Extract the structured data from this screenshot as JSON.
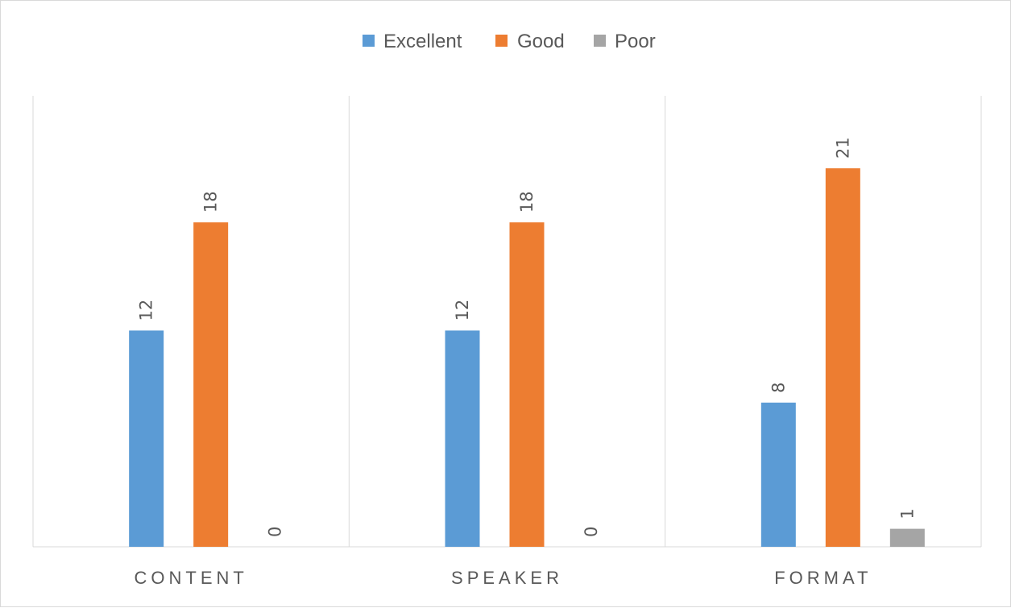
{
  "chart_data": {
    "type": "bar",
    "categories": [
      "CONTENT",
      "SPEAKER",
      "FORMAT"
    ],
    "series": [
      {
        "name": "Excellent",
        "color": "#5b9bd5",
        "values": [
          12,
          12,
          8
        ]
      },
      {
        "name": "Good",
        "color": "#ed7d31",
        "values": [
          18,
          18,
          21
        ]
      },
      {
        "name": "Poor",
        "color": "#a5a5a5",
        "values": [
          0,
          0,
          1
        ]
      }
    ],
    "title": "",
    "xlabel": "",
    "ylabel": "",
    "ylim": [
      0,
      25
    ],
    "legend": "top",
    "grid": "vertical category separators",
    "data_labels": "rotated vertical above bars"
  }
}
